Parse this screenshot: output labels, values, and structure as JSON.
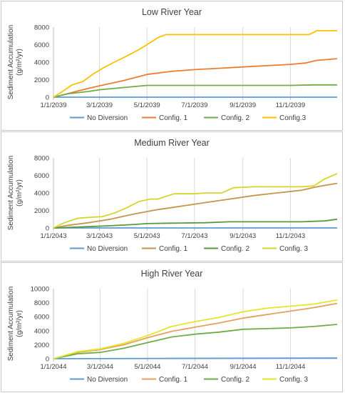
{
  "chart_data": [
    {
      "type": "line",
      "title": "Low River Year",
      "ylabel": "Sediment Accumulation (g/m²/yr)",
      "ylabel_lines": [
        "Sediment Accumulation",
        "(g/m²/yr)"
      ],
      "ylim": [
        0,
        8000
      ],
      "yticks": [
        0,
        2000,
        4000,
        6000,
        8000
      ],
      "ytick_labels": [
        "0",
        "2000",
        "4000",
        "6000",
        "8000"
      ],
      "xlim": [
        "2039-01-01",
        "2039-12-31"
      ],
      "xticks": [
        "2039-01-01",
        "2039-03-01",
        "2039-05-01",
        "2039-07-01",
        "2039-09-01",
        "2039-11-01"
      ],
      "xtick_labels": [
        "1/1/2039",
        "3/1/2039",
        "5/1/2039",
        "7/1/2039",
        "9/1/2039",
        "11/1/2039"
      ],
      "grid": "vertical",
      "legend_position": "bottom",
      "series": [
        {
          "name": "No Diversion",
          "color": "#5b9bd5",
          "points": [
            [
              "2039-01-01",
              0
            ],
            [
              "2039-12-31",
              0
            ]
          ]
        },
        {
          "name": "Config. 1",
          "color": "#ed7d31",
          "points": [
            [
              "2039-01-01",
              0
            ],
            [
              "2039-01-15",
              300
            ],
            [
              "2039-02-01",
              700
            ],
            [
              "2039-03-01",
              1300
            ],
            [
              "2039-04-01",
              1900
            ],
            [
              "2039-05-01",
              2600
            ],
            [
              "2039-06-01",
              2950
            ],
            [
              "2039-07-01",
              3150
            ],
            [
              "2039-08-01",
              3300
            ],
            [
              "2039-09-01",
              3450
            ],
            [
              "2039-10-01",
              3600
            ],
            [
              "2039-11-01",
              3750
            ],
            [
              "2039-11-20",
              3900
            ],
            [
              "2039-12-05",
              4200
            ],
            [
              "2039-12-31",
              4400
            ]
          ]
        },
        {
          "name": "Config. 2",
          "color": "#70ad47",
          "points": [
            [
              "2039-01-01",
              0
            ],
            [
              "2039-01-20",
              400
            ],
            [
              "2039-02-15",
              650
            ],
            [
              "2039-03-01",
              850
            ],
            [
              "2039-04-01",
              1100
            ],
            [
              "2039-05-01",
              1350
            ],
            [
              "2039-06-01",
              1350
            ],
            [
              "2039-09-01",
              1350
            ],
            [
              "2039-11-01",
              1350
            ],
            [
              "2039-12-01",
              1400
            ],
            [
              "2039-12-31",
              1400
            ]
          ]
        },
        {
          "name": "Config.3",
          "color": "#ffc000",
          "points": [
            [
              "2039-01-01",
              0
            ],
            [
              "2039-01-10",
              500
            ],
            [
              "2039-01-25",
              1400
            ],
            [
              "2039-02-08",
              1800
            ],
            [
              "2039-02-20",
              2600
            ],
            [
              "2039-03-05",
              3300
            ],
            [
              "2039-03-20",
              4000
            ],
            [
              "2039-04-05",
              4700
            ],
            [
              "2039-04-20",
              5400
            ],
            [
              "2039-05-01",
              6000
            ],
            [
              "2039-05-15",
              6800
            ],
            [
              "2039-05-25",
              7150
            ],
            [
              "2039-07-01",
              7150
            ],
            [
              "2039-09-01",
              7150
            ],
            [
              "2039-11-01",
              7150
            ],
            [
              "2039-11-25",
              7150
            ],
            [
              "2039-12-05",
              7600
            ],
            [
              "2039-12-31",
              7600
            ]
          ]
        }
      ]
    },
    {
      "type": "line",
      "title": "Medium River Year",
      "ylabel": "Sediment Accumulation (g/m²/yr)",
      "ylabel_lines": [
        "Sediment Accumulation",
        "(g/m²/yr)"
      ],
      "ylim": [
        0,
        8000
      ],
      "yticks": [
        0,
        2000,
        4000,
        6000,
        8000
      ],
      "ytick_labels": [
        "0",
        "2000",
        "4000",
        "6000",
        "8000"
      ],
      "xlim": [
        "2043-01-01",
        "2043-12-31"
      ],
      "xticks": [
        "2043-01-01",
        "2043-03-01",
        "2043-05-01",
        "2043-07-01",
        "2043-09-01",
        "2043-11-01"
      ],
      "xtick_labels": [
        "1/1/2043",
        "3/1/2043",
        "5/1/2043",
        "7/1/2043",
        "9/1/2043",
        "11/1/2043"
      ],
      "grid": "vertical",
      "legend_position": "bottom",
      "series": [
        {
          "name": "No Diversion",
          "color": "#5b9bd5",
          "points": [
            [
              "2043-01-01",
              0
            ],
            [
              "2043-12-31",
              0
            ]
          ]
        },
        {
          "name": "Config. 1",
          "color": "#c5964a",
          "points": [
            [
              "2043-01-01",
              0
            ],
            [
              "2043-01-20",
              300
            ],
            [
              "2043-02-15",
              600
            ],
            [
              "2043-03-15",
              1000
            ],
            [
              "2043-04-15",
              1600
            ],
            [
              "2043-05-15",
              2100
            ],
            [
              "2043-06-15",
              2500
            ],
            [
              "2043-07-15",
              2900
            ],
            [
              "2043-08-15",
              3300
            ],
            [
              "2043-09-15",
              3700
            ],
            [
              "2043-10-15",
              4000
            ],
            [
              "2043-11-15",
              4300
            ],
            [
              "2043-12-05",
              4700
            ],
            [
              "2043-12-31",
              5100
            ]
          ]
        },
        {
          "name": "Config. 2",
          "color": "#5a9a3a",
          "points": [
            [
              "2043-01-01",
              0
            ],
            [
              "2043-02-01",
              100
            ],
            [
              "2043-03-15",
              250
            ],
            [
              "2043-04-15",
              400
            ],
            [
              "2043-05-01",
              500
            ],
            [
              "2043-06-01",
              550
            ],
            [
              "2043-07-15",
              600
            ],
            [
              "2043-08-15",
              700
            ],
            [
              "2043-10-01",
              700
            ],
            [
              "2043-11-15",
              700
            ],
            [
              "2043-12-15",
              800
            ],
            [
              "2043-12-31",
              1000
            ]
          ]
        },
        {
          "name": "Config. 3",
          "color": "#d6d629",
          "points": [
            [
              "2043-01-01",
              0
            ],
            [
              "2043-01-15",
              600
            ],
            [
              "2043-02-01",
              1100
            ],
            [
              "2043-02-15",
              1200
            ],
            [
              "2043-03-05",
              1300
            ],
            [
              "2043-03-20",
              1700
            ],
            [
              "2043-04-05",
              2300
            ],
            [
              "2043-04-20",
              3000
            ],
            [
              "2043-05-05",
              3300
            ],
            [
              "2043-05-15",
              3300
            ],
            [
              "2043-05-25",
              3600
            ],
            [
              "2043-06-05",
              3900
            ],
            [
              "2043-07-01",
              3900
            ],
            [
              "2043-07-15",
              4000
            ],
            [
              "2043-08-05",
              4000
            ],
            [
              "2043-08-20",
              4600
            ],
            [
              "2043-09-15",
              4700
            ],
            [
              "2043-10-15",
              4700
            ],
            [
              "2043-11-15",
              4700
            ],
            [
              "2043-12-01",
              4800
            ],
            [
              "2043-12-15",
              5600
            ],
            [
              "2043-12-31",
              6200
            ]
          ]
        }
      ]
    },
    {
      "type": "line",
      "title": "High River Year",
      "ylabel": "Sediment Accumulation (g/m²/yr)",
      "ylabel_lines": [
        "Sediment Accumulation",
        "(g/m²/yr)"
      ],
      "ylim": [
        0,
        10000
      ],
      "yticks": [
        0,
        2000,
        4000,
        6000,
        8000,
        10000
      ],
      "ytick_labels": [
        "0",
        "2000",
        "4000",
        "6000",
        "8000",
        "10000"
      ],
      "xlim": [
        "2044-01-01",
        "2044-12-31"
      ],
      "xticks": [
        "2044-01-01",
        "2044-03-01",
        "2044-05-01",
        "2044-07-01",
        "2044-09-01",
        "2044-11-01"
      ],
      "xtick_labels": [
        "1/1/2044",
        "3/1/2044",
        "5/1/2044",
        "7/1/2044",
        "9/1/2044",
        "11/1/2044"
      ],
      "grid": "vertical",
      "legend_position": "bottom",
      "series": [
        {
          "name": "No Diversion",
          "color": "#5b9bd5",
          "points": [
            [
              "2044-01-01",
              0
            ],
            [
              "2044-12-31",
              100
            ]
          ]
        },
        {
          "name": "Config. 1",
          "color": "#e8a05a",
          "points": [
            [
              "2044-01-01",
              0
            ],
            [
              "2044-02-01",
              900
            ],
            [
              "2044-03-01",
              1300
            ],
            [
              "2044-04-01",
              2000
            ],
            [
              "2044-05-01",
              3000
            ],
            [
              "2044-06-01",
              3900
            ],
            [
              "2044-07-01",
              4500
            ],
            [
              "2044-08-01",
              5100
            ],
            [
              "2044-09-01",
              5800
            ],
            [
              "2044-10-01",
              6300
            ],
            [
              "2044-11-01",
              6800
            ],
            [
              "2044-12-01",
              7300
            ],
            [
              "2044-12-31",
              7900
            ]
          ]
        },
        {
          "name": "Config. 2",
          "color": "#70ad47",
          "points": [
            [
              "2044-01-01",
              0
            ],
            [
              "2044-02-01",
              700
            ],
            [
              "2044-03-01",
              900
            ],
            [
              "2044-04-01",
              1500
            ],
            [
              "2044-05-01",
              2300
            ],
            [
              "2044-06-01",
              3100
            ],
            [
              "2044-07-01",
              3500
            ],
            [
              "2044-08-01",
              3800
            ],
            [
              "2044-09-01",
              4200
            ],
            [
              "2044-10-01",
              4300
            ],
            [
              "2044-11-01",
              4400
            ],
            [
              "2044-12-01",
              4600
            ],
            [
              "2044-12-31",
              4900
            ]
          ]
        },
        {
          "name": "Config. 3",
          "color": "#e5e52a",
          "points": [
            [
              "2044-01-01",
              0
            ],
            [
              "2044-02-01",
              1000
            ],
            [
              "2044-03-01",
              1400
            ],
            [
              "2044-04-01",
              2200
            ],
            [
              "2044-05-01",
              3300
            ],
            [
              "2044-06-01",
              4600
            ],
            [
              "2044-07-01",
              5300
            ],
            [
              "2044-08-01",
              5900
            ],
            [
              "2044-09-01",
              6700
            ],
            [
              "2044-10-01",
              7200
            ],
            [
              "2044-11-01",
              7500
            ],
            [
              "2044-12-01",
              7800
            ],
            [
              "2044-12-31",
              8400
            ]
          ]
        }
      ]
    }
  ]
}
